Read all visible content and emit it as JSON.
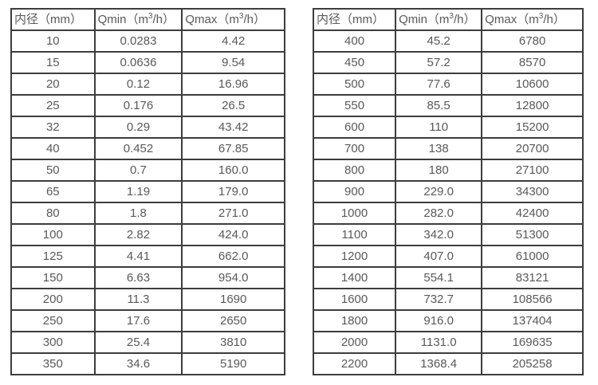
{
  "page": {
    "background": "#ffffff",
    "text_color": "#595959",
    "border_color": "#3d3d3d"
  },
  "tables": [
    {
      "name": "flow-table-small-diameters",
      "headers": [
        "内径（mm）",
        "Qmin（m³/h）",
        "Qmax（m³/h）"
      ],
      "rows": [
        [
          "10",
          "0.0283",
          "4.42"
        ],
        [
          "15",
          "0.0636",
          "9.54"
        ],
        [
          "20",
          "0.12",
          "16.96"
        ],
        [
          "25",
          "0.176",
          "26.5"
        ],
        [
          "32",
          "0.29",
          "43.42"
        ],
        [
          "40",
          "0.452",
          "67.85"
        ],
        [
          "50",
          "0.7",
          "160.0"
        ],
        [
          "65",
          "1.19",
          "179.0"
        ],
        [
          "80",
          "1.8",
          "271.0"
        ],
        [
          "100",
          "2.82",
          "424.0"
        ],
        [
          "125",
          "4.41",
          "662.0"
        ],
        [
          "150",
          "6.63",
          "954.0"
        ],
        [
          "200",
          "11.3",
          "1690"
        ],
        [
          "250",
          "17.6",
          "2650"
        ],
        [
          "300",
          "25.4",
          "3810"
        ],
        [
          "350",
          "34.6",
          "5190"
        ]
      ]
    },
    {
      "name": "flow-table-large-diameters",
      "headers": [
        "内径（mm）",
        "Qmin（m³/h）",
        "Qmax（m³/h）"
      ],
      "rows": [
        [
          "400",
          "45.2",
          "6780"
        ],
        [
          "450",
          "57.2",
          "8570"
        ],
        [
          "500",
          "77.6",
          "10600"
        ],
        [
          "550",
          "85.5",
          "12800"
        ],
        [
          "600",
          "110",
          "15200"
        ],
        [
          "700",
          "138",
          "20700"
        ],
        [
          "800",
          "180",
          "27100"
        ],
        [
          "900",
          "229.0",
          "34300"
        ],
        [
          "1000",
          "282.0",
          "42400"
        ],
        [
          "1100",
          "342.0",
          "51300"
        ],
        [
          "1200",
          "407.0",
          "61000"
        ],
        [
          "1400",
          "554.1",
          "83121"
        ],
        [
          "1600",
          "732.7",
          "108566"
        ],
        [
          "1800",
          "916.0",
          "137404"
        ],
        [
          "2000",
          "1131.0",
          "169635"
        ],
        [
          "2200",
          "1368.4",
          "205258"
        ]
      ]
    }
  ]
}
